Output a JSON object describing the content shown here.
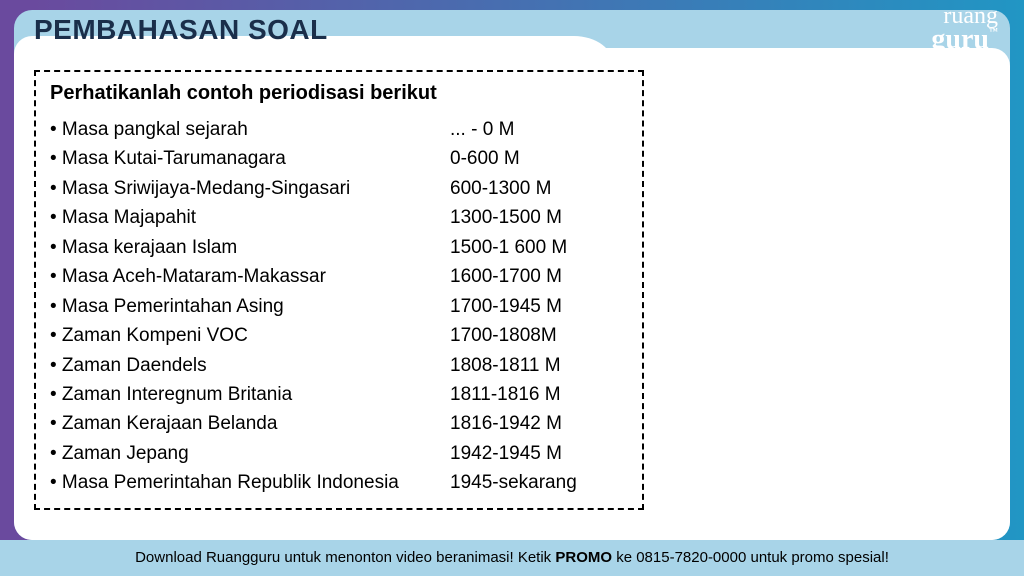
{
  "header": {
    "title": "PEMBAHASAN SOAL",
    "logo_line1": "ruang",
    "logo_line2": "guru"
  },
  "content": {
    "title": "Perhatikanlah contoh periodisasi berikut",
    "rows": [
      {
        "label": "• Masa pangkal sejarah",
        "period": "... - 0 M"
      },
      {
        "label": "• Masa Kutai-Tarumanagara",
        "period": "0-600 M"
      },
      {
        "label": "• Masa Sriwijaya-Medang-Singasari",
        "period": "600-1300 M"
      },
      {
        "label": "• Masa Majapahit",
        "period": "1300-1500 M"
      },
      {
        "label": "• Masa kerajaan Islam",
        "period": "1500-1 600 M"
      },
      {
        "label": "• Masa Aceh-Mataram-Makassar",
        "period": "1600-1700 M"
      },
      {
        "label": "• Masa Pemerintahan Asing",
        "period": "1700-1945 M"
      },
      {
        "label": "• Zaman Kompeni VOC",
        "period": "1700-1808M"
      },
      {
        "label": "• Zaman Daendels",
        "period": "1808-1811 M"
      },
      {
        "label": "• Zaman Interegnum Britania",
        "period": "1811-1816 M"
      },
      {
        "label": "• Zaman Kerajaan Belanda",
        "period": "1816-1942 M"
      },
      {
        "label": "• Zaman Jepang",
        "period": "1942-1945 M"
      },
      {
        "label": "• Masa Pemerintahan Republik Indonesia",
        "period": "1945-sekarang"
      }
    ]
  },
  "footer": {
    "prefix": "Download Ruangguru untuk menonton video beranimasi! Ketik ",
    "bold": "PROMO",
    "suffix": " ke 0815-7820-0000 untuk promo spesial!"
  },
  "colors": {
    "bg_gradient_left": "#6a4a9e",
    "bg_gradient_right": "#2196c4",
    "card_bg": "#a8d4e8",
    "white": "#ffffff",
    "title_color": "#1a2e4a"
  }
}
